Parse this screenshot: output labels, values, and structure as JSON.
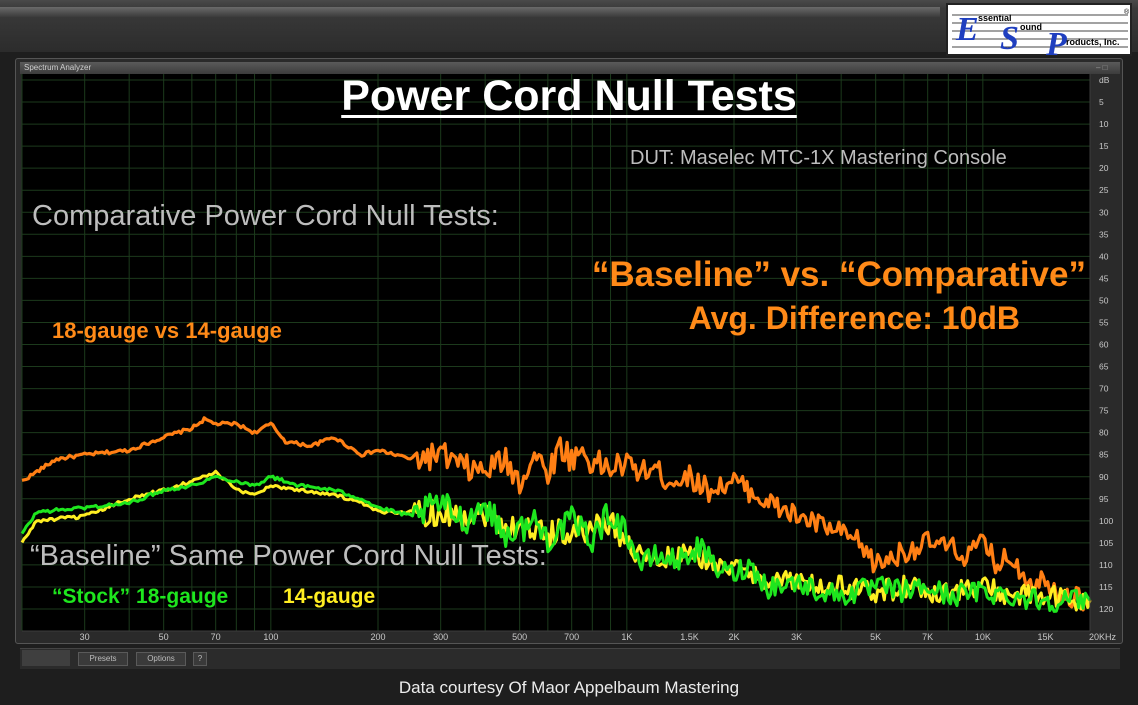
{
  "window": {
    "panel_title": "Spectrum Analyzer",
    "panel_buttons": "– □",
    "toolbar": {
      "presets_label": "Presets",
      "options_label": "Options",
      "help_label": "?"
    }
  },
  "logo": {
    "big_letters": [
      "E",
      "S",
      "P"
    ],
    "words": [
      "ssential",
      "ound",
      "roducts, Inc."
    ],
    "registered": "®"
  },
  "overlay": {
    "title": "Power Cord Null Tests",
    "dut": "DUT: Maselec MTC-1X Mastering Console",
    "comparative_heading": "Comparative Power Cord Null Tests:",
    "comparative_sub": "18-gauge vs 14-gauge",
    "difference_line1": "“Baseline” vs. “Comparative”",
    "difference_line2": "Avg. Difference: 10dB",
    "baseline_heading": "“Baseline” Same Power Cord Null Tests:",
    "legend_stock": "“Stock” 18-gauge",
    "legend_14": "14-gauge",
    "credit": "Data courtesy Of Maor Appelbaum Mastering"
  },
  "chart_data": {
    "type": "line",
    "title": "Power Cord Null Tests",
    "x_scale": "log",
    "xlim": [
      20,
      20000
    ],
    "ylabel": "dB",
    "ylim": [
      0,
      -122
    ],
    "grid": true,
    "x_tick_values": [
      30,
      50,
      70,
      100,
      200,
      300,
      500,
      700,
      1000,
      1500,
      2000,
      3000,
      5000,
      7000,
      10000,
      15000,
      20000
    ],
    "x_tick_labels": [
      "30",
      "50",
      "70",
      "100",
      "200",
      "300",
      "500",
      "700",
      "1K",
      "1.5K",
      "2K",
      "3K",
      "5K",
      "7K",
      "10K",
      "15K",
      "20KHz"
    ],
    "y_tick_values": [
      0,
      -5,
      -10,
      -15,
      -20,
      -25,
      -30,
      -35,
      -40,
      -45,
      -50,
      -55,
      -60,
      -65,
      -70,
      -75,
      -80,
      -85,
      -90,
      -95,
      -100,
      -105,
      -110,
      -115,
      -120
    ],
    "y_tick_labels": [
      "dB",
      "5",
      "10",
      "15",
      "20",
      "25",
      "30",
      "35",
      "40",
      "45",
      "50",
      "55",
      "60",
      "65",
      "70",
      "75",
      "80",
      "85",
      "90",
      "95",
      "100",
      "105",
      "110",
      "115",
      "120"
    ],
    "colors": {
      "comparative": "#ff7f14",
      "stock": "#1ee61e",
      "fourteen": "#ffee22"
    },
    "series": [
      {
        "name": "18-gauge vs 14-gauge",
        "color": "#ff7f14",
        "x": [
          20,
          25,
          30,
          40,
          50,
          60,
          65,
          70,
          80,
          90,
          100,
          110,
          130,
          150,
          180,
          200,
          250,
          300,
          350,
          400,
          450,
          500,
          550,
          600,
          650,
          700,
          750,
          800,
          900,
          1000,
          1100,
          1200,
          1300,
          1500,
          1700,
          2000,
          2300,
          2500,
          3000,
          3500,
          4000,
          4500,
          5000,
          6000,
          7000,
          8000,
          9000,
          10000,
          11000,
          12000,
          13000,
          14000,
          15000,
          17000,
          20000
        ],
        "y": [
          -91,
          -86,
          -85,
          -84,
          -81,
          -79,
          -77,
          -78,
          -78,
          -80,
          -78,
          -82,
          -83,
          -81,
          -85,
          -84,
          -86,
          -85,
          -88,
          -89,
          -86,
          -91,
          -85,
          -89,
          -83,
          -86,
          -84,
          -87,
          -88,
          -87,
          -89,
          -88,
          -91,
          -90,
          -93,
          -91,
          -94,
          -96,
          -99,
          -101,
          -103,
          -105,
          -110,
          -107,
          -105,
          -106,
          -108,
          -105,
          -110,
          -108,
          -112,
          -114,
          -113,
          -117,
          -118
        ]
      },
      {
        "name": "“Stock” 18-gauge",
        "color": "#1ee61e",
        "x": [
          20,
          22,
          30,
          40,
          50,
          60,
          70,
          80,
          90,
          100,
          120,
          150,
          180,
          200,
          250,
          300,
          350,
          400,
          450,
          500,
          550,
          600,
          700,
          800,
          900,
          1000,
          1100,
          1200,
          1400,
          1600,
          1800,
          2000,
          2200,
          2500,
          3000,
          3500,
          4000,
          5000,
          6000,
          7000,
          8000,
          10000,
          12000,
          15000,
          17000,
          20000
        ],
        "y": [
          -103,
          -98,
          -97,
          -96,
          -93,
          -92,
          -90,
          -91,
          -92,
          -90,
          -92,
          -93,
          -95,
          -97,
          -99,
          -96,
          -100,
          -96,
          -103,
          -102,
          -100,
          -104,
          -100,
          -104,
          -98,
          -103,
          -110,
          -108,
          -109,
          -106,
          -111,
          -112,
          -110,
          -115,
          -114,
          -116,
          -117,
          -115,
          -116,
          -115,
          -117,
          -116,
          -117,
          -118,
          -118,
          -118
        ]
      },
      {
        "name": "14-gauge",
        "color": "#ffee22",
        "x": [
          20,
          22,
          30,
          40,
          50,
          60,
          70,
          80,
          90,
          100,
          120,
          150,
          180,
          200,
          250,
          300,
          350,
          400,
          450,
          500,
          550,
          600,
          700,
          800,
          900,
          1000,
          1100,
          1200,
          1400,
          1600,
          1800,
          2000,
          2200,
          2500,
          3000,
          3500,
          4000,
          5000,
          6000,
          7000,
          8000,
          10000,
          12000,
          15000,
          17000,
          20000
        ],
        "y": [
          -105,
          -100,
          -99,
          -95,
          -93,
          -91,
          -89,
          -93,
          -94,
          -92,
          -93,
          -94,
          -96,
          -98,
          -98,
          -98,
          -99,
          -98,
          -101,
          -101,
          -102,
          -103,
          -102,
          -102,
          -100,
          -105,
          -108,
          -109,
          -108,
          -108,
          -110,
          -111,
          -112,
          -113,
          -114,
          -115,
          -115,
          -116,
          -115,
          -116,
          -116,
          -115,
          -117,
          -117,
          -118,
          -118
        ]
      }
    ]
  }
}
